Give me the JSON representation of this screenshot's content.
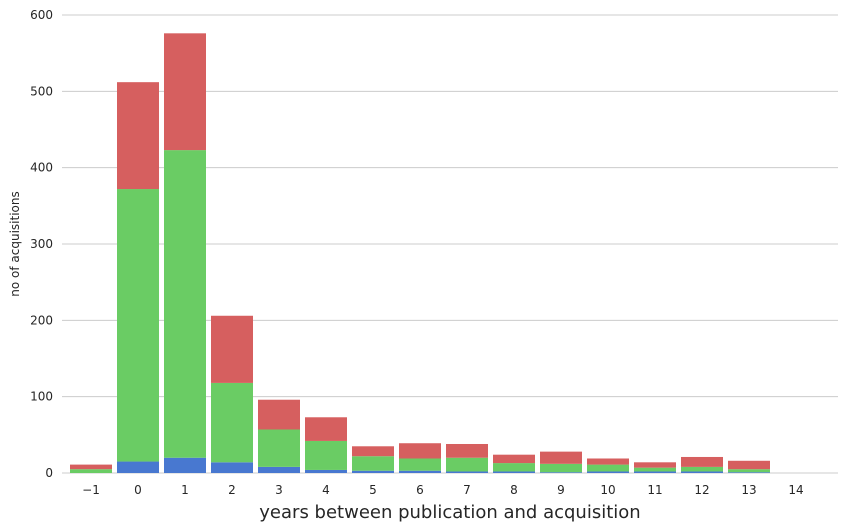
{
  "chart_data": {
    "type": "bar",
    "stacked": true,
    "title": "",
    "xlabel": "years between publication and acquisition",
    "ylabel": "no of acquisitions",
    "ylim": [
      0,
      600
    ],
    "yticks": [
      0,
      100,
      200,
      300,
      400,
      500,
      600
    ],
    "grid": "horizontal",
    "categories": [
      "−1",
      "0",
      "1",
      "2",
      "3",
      "4",
      "5",
      "6",
      "7",
      "8",
      "9",
      "10",
      "11",
      "12",
      "13",
      "14"
    ],
    "series": [
      {
        "color": "#4878d0",
        "values": [
          0,
          15,
          20,
          14,
          8,
          4,
          3,
          3,
          2,
          2,
          1,
          2,
          2,
          2,
          1,
          0
        ]
      },
      {
        "color": "#6acc64",
        "values": [
          5,
          357,
          403,
          104,
          49,
          38,
          19,
          16,
          18,
          11,
          11,
          9,
          5,
          6,
          4,
          0
        ]
      },
      {
        "color": "#d65f5f",
        "values": [
          6,
          140,
          153,
          88,
          39,
          31,
          13,
          20,
          18,
          11,
          16,
          8,
          7,
          13,
          11,
          0
        ]
      }
    ]
  }
}
